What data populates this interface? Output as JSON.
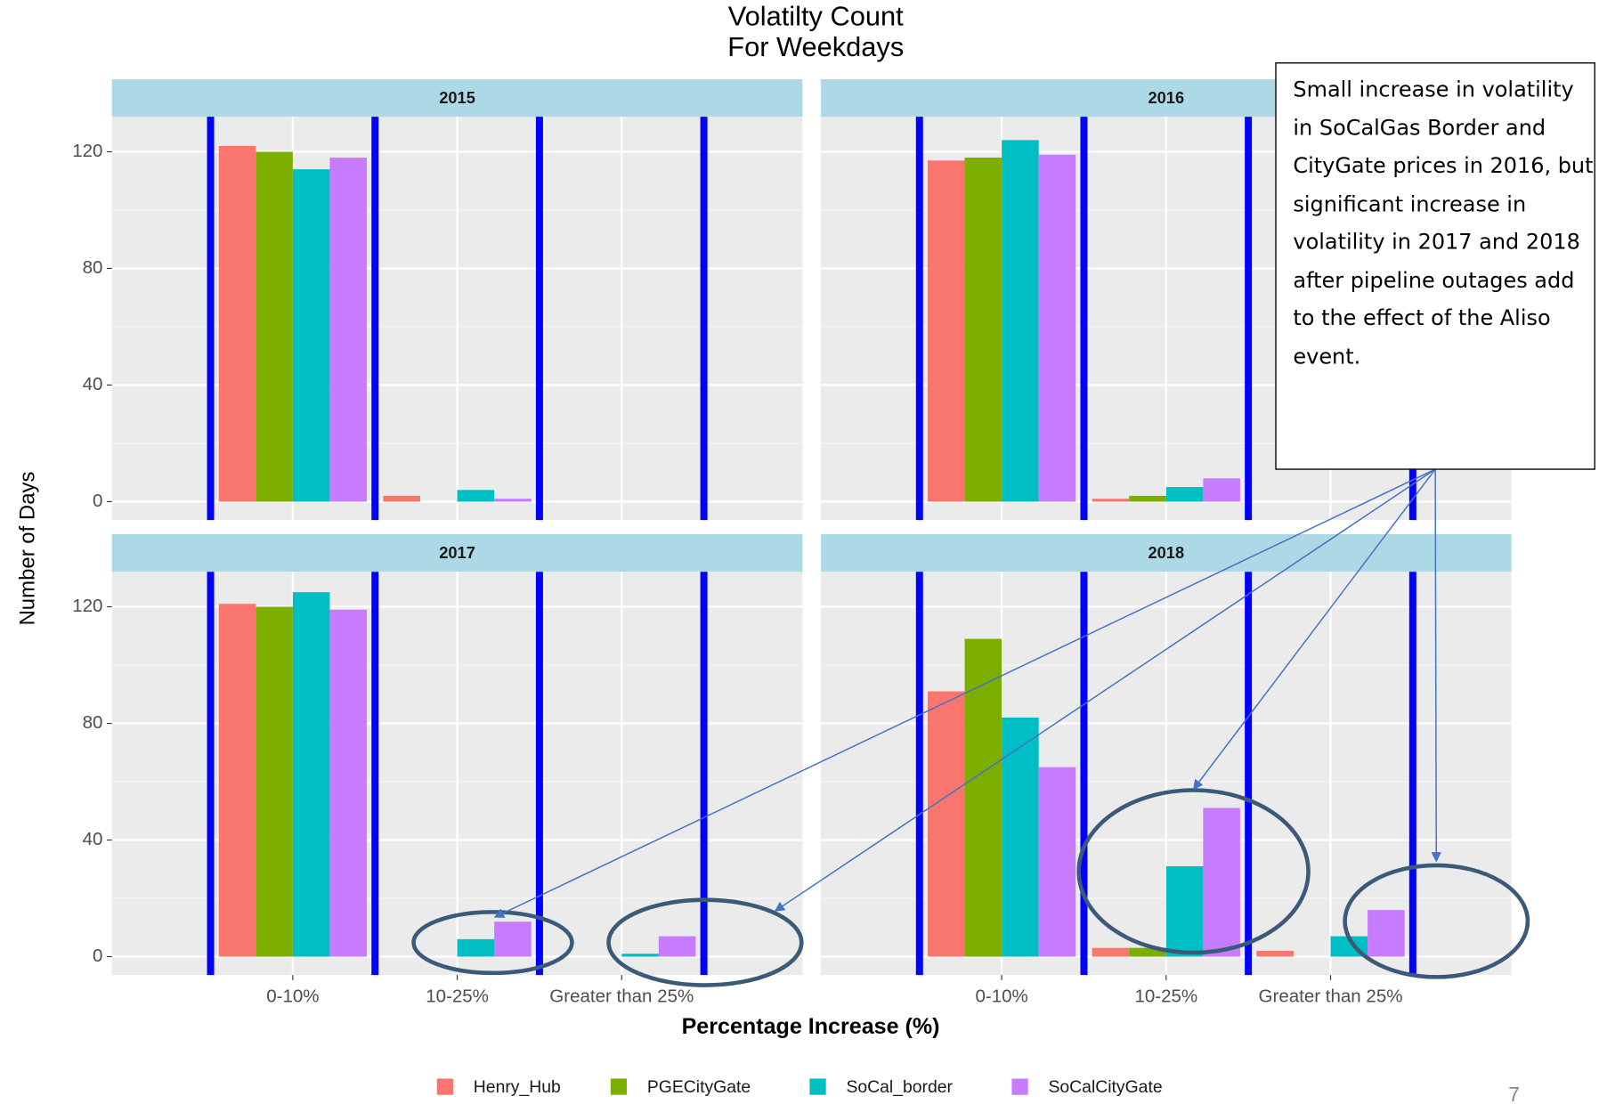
{
  "chart_data": {
    "type": "bar",
    "title": "Volatilty Count",
    "subtitle": "For Weekdays",
    "x_label": "Percentage Increase (%)",
    "y_label": "Number of Days",
    "categories": [
      "0-10%",
      "10-25%",
      "Greater than 25%"
    ],
    "series": [
      {
        "name": "Henry_Hub",
        "color": "#f8766d"
      },
      {
        "name": "PGECityGate",
        "color": "#7cae00"
      },
      {
        "name": "SoCal_border",
        "color": "#00bfc4"
      },
      {
        "name": "SoCalCityGate",
        "color": "#c77cff"
      }
    ],
    "panels": [
      {
        "title": "2015",
        "values": [
          [
            122,
            2,
            0
          ],
          [
            120,
            0,
            0
          ],
          [
            114,
            4,
            0
          ],
          [
            118,
            1,
            0
          ]
        ]
      },
      {
        "title": "2016",
        "values": [
          [
            117,
            1,
            0
          ],
          [
            118,
            2,
            0
          ],
          [
            124,
            5,
            0
          ],
          [
            119,
            8,
            0
          ]
        ]
      },
      {
        "title": "2017",
        "values": [
          [
            121,
            0,
            0
          ],
          [
            120,
            0,
            0
          ],
          [
            125,
            6,
            1
          ],
          [
            119,
            12,
            7
          ]
        ]
      },
      {
        "title": "2018",
        "values": [
          [
            91,
            3,
            2
          ],
          [
            109,
            3,
            0
          ],
          [
            82,
            31,
            7
          ],
          [
            65,
            51,
            16
          ]
        ]
      }
    ],
    "ylim": [
      -6.3,
      132
    ],
    "yticks": [
      0,
      40,
      80,
      120
    ],
    "grid": true,
    "annotation": "Small increase in volatility in SoCalGas Border and CityGate prices in 2016, but significant increase in volatility in 2017 and 2018 after pipeline outages add to the effect of the Aliso event."
  },
  "slide": {
    "page_number": "7"
  }
}
